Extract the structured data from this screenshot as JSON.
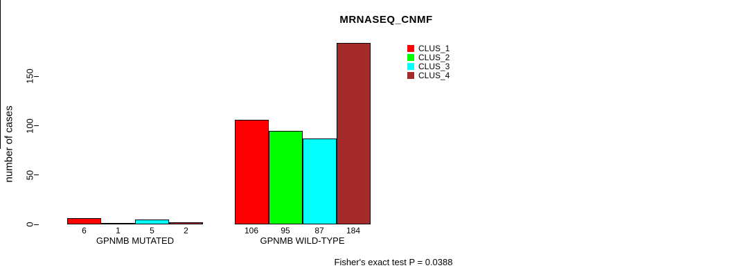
{
  "title": "MRNASEQ_CNMF",
  "y_axis": {
    "label": "number of cases"
  },
  "caption": "Fisher's exact test P = 0.0388",
  "chart_data": {
    "type": "bar",
    "title": "MRNASEQ_CNMF",
    "xlabel": "",
    "ylabel": "number of cases",
    "ylim": [
      0,
      184
    ],
    "yticks": [
      0,
      50,
      100,
      150
    ],
    "grid": false,
    "legend_position": "top-right",
    "bar_value_labels_shown": true,
    "categories": [
      "GPNMB MUTATED",
      "GPNMB WILD-TYPE"
    ],
    "series": [
      {
        "name": "CLUS_1",
        "color": "#ff0000",
        "values": [
          6,
          106
        ]
      },
      {
        "name": "CLUS_2",
        "color": "#00ff00",
        "values": [
          1,
          95
        ]
      },
      {
        "name": "CLUS_3",
        "color": "#00ffff",
        "values": [
          5,
          87
        ]
      },
      {
        "name": "CLUS_4",
        "color": "#a52a2a",
        "values": [
          2,
          184
        ]
      }
    ],
    "annotation": "Fisher's exact test P = 0.0388"
  }
}
